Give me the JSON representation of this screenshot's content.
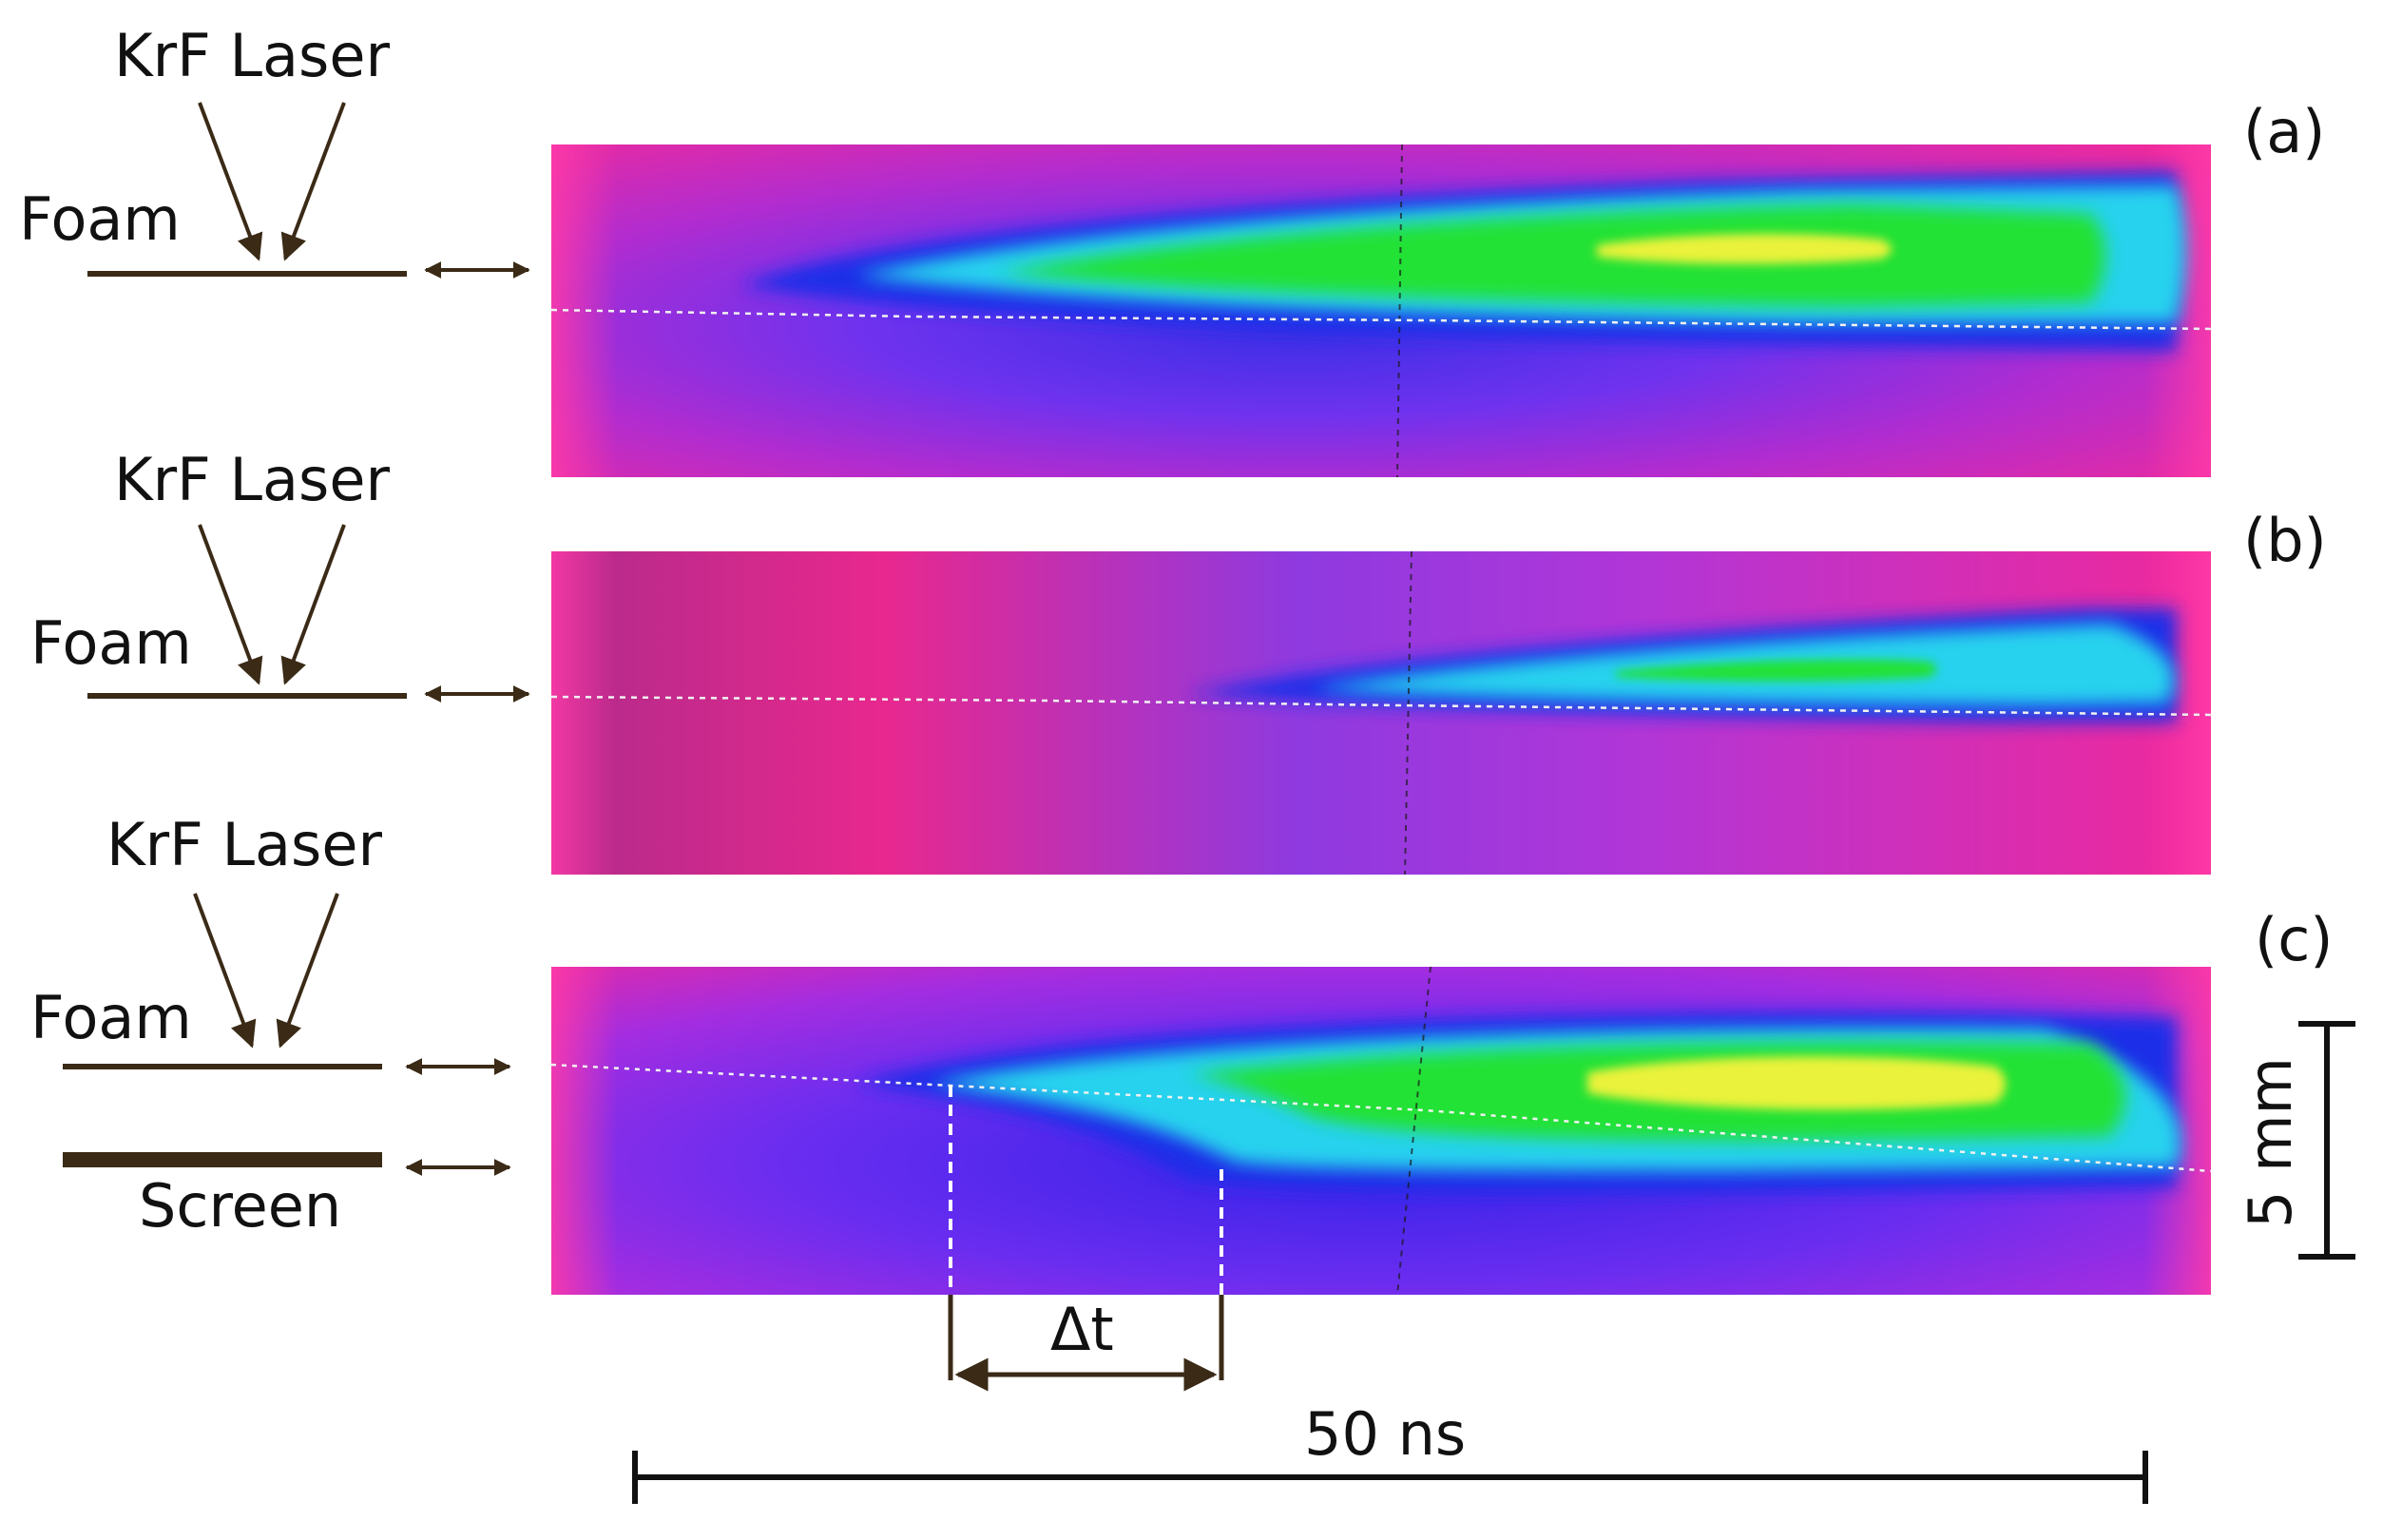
{
  "panels": [
    {
      "label": "(a)",
      "laser": "KrF Laser",
      "target": "Foam",
      "screen": ""
    },
    {
      "label": "(b)",
      "laser": "KrF Laser",
      "target": "Foam",
      "screen": ""
    },
    {
      "label": "(c)",
      "laser": "KrF Laser",
      "target": "Foam",
      "screen": "Screen"
    }
  ],
  "delta_t_label": "Δt",
  "time_scale_label": "50 ns",
  "space_scale_label": "5 mm",
  "colors": {
    "ink": "#3a2a16",
    "background_magenta": "#e0259f",
    "background_violet": "#8a2be2",
    "streak_blue": "#1c2fe8",
    "streak_cyan": "#28d2ee",
    "streak_green": "#22e236",
    "streak_yellow": "#eaf23a"
  }
}
